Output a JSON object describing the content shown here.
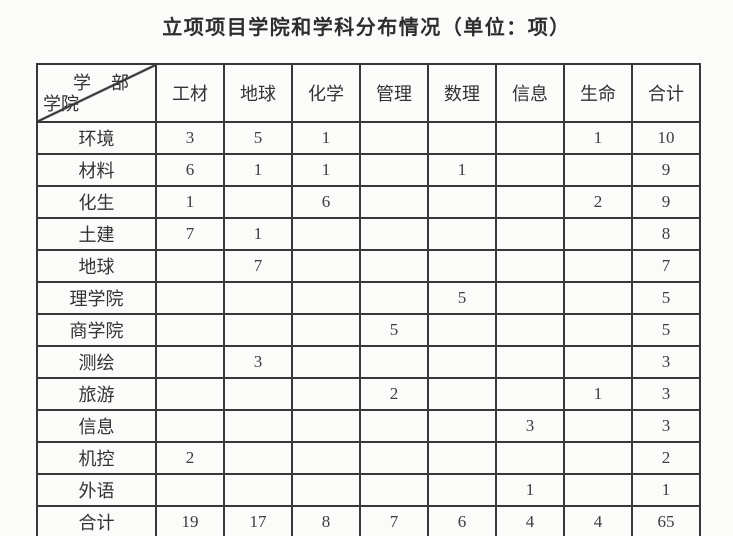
{
  "title": "立项项目学院和学科分布情况（单位：项）",
  "table": {
    "corner": {
      "top": "学部",
      "bottom": "学院"
    },
    "columns": [
      "工材",
      "地球",
      "化学",
      "管理",
      "数理",
      "信息",
      "生命",
      "合计"
    ],
    "rows": [
      {
        "label": "环境",
        "values": [
          "3",
          "5",
          "1",
          "",
          "",
          "",
          "1",
          "10"
        ]
      },
      {
        "label": "材料",
        "values": [
          "6",
          "1",
          "1",
          "",
          "1",
          "",
          "",
          "9"
        ]
      },
      {
        "label": "化生",
        "values": [
          "1",
          "",
          "6",
          "",
          "",
          "",
          "2",
          "9"
        ]
      },
      {
        "label": "土建",
        "values": [
          "7",
          "1",
          "",
          "",
          "",
          "",
          "",
          "8"
        ]
      },
      {
        "label": "地球",
        "values": [
          "",
          "7",
          "",
          "",
          "",
          "",
          "",
          "7"
        ]
      },
      {
        "label": "理学院",
        "values": [
          "",
          "",
          "",
          "",
          "5",
          "",
          "",
          "5"
        ]
      },
      {
        "label": "商学院",
        "values": [
          "",
          "",
          "",
          "5",
          "",
          "",
          "",
          "5"
        ]
      },
      {
        "label": "测绘",
        "values": [
          "",
          "3",
          "",
          "",
          "",
          "",
          "",
          "3"
        ]
      },
      {
        "label": "旅游",
        "values": [
          "",
          "",
          "",
          "2",
          "",
          "",
          "1",
          "3"
        ]
      },
      {
        "label": "信息",
        "values": [
          "",
          "",
          "",
          "",
          "",
          "3",
          "",
          "3"
        ]
      },
      {
        "label": "机控",
        "values": [
          "2",
          "",
          "",
          "",
          "",
          "",
          "",
          "2"
        ]
      },
      {
        "label": "外语",
        "values": [
          "",
          "",
          "",
          "",
          "",
          "1",
          "",
          "1"
        ]
      },
      {
        "label": "合计",
        "values": [
          "19",
          "17",
          "8",
          "7",
          "6",
          "4",
          "4",
          "65"
        ]
      }
    ]
  }
}
